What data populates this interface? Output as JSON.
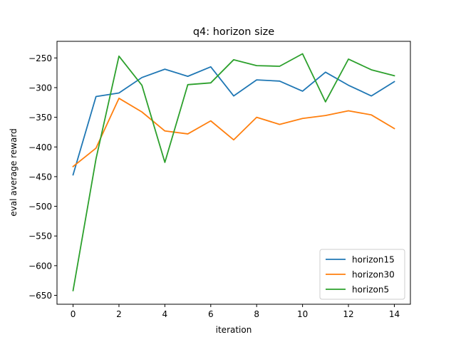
{
  "chart_data": {
    "type": "line",
    "title": "q4: horizon size",
    "xlabel": "iteration",
    "ylabel": "eval average reward",
    "xlim": [
      -0.7,
      14.7
    ],
    "ylim": [
      -665,
      -222
    ],
    "xticks": [
      0,
      2,
      4,
      6,
      8,
      10,
      12,
      14
    ],
    "yticks": [
      -650,
      -600,
      -550,
      -500,
      -450,
      -400,
      -350,
      -300,
      -250
    ],
    "grid": false,
    "legend_position": "lower-right",
    "x": [
      0,
      1,
      2,
      3,
      4,
      5,
      6,
      7,
      8,
      9,
      10,
      11,
      12,
      13,
      14
    ],
    "series": [
      {
        "name": "horizon15",
        "color": "#1f77b4",
        "values": [
          -447,
          -315,
          -309,
          -283,
          -269,
          -281,
          -265,
          -314,
          -287,
          -289,
          -306,
          -274,
          -296,
          -314,
          -290
        ]
      },
      {
        "name": "horizon30",
        "color": "#ff7f0e",
        "values": [
          -433,
          -402,
          -318,
          -341,
          -373,
          -378,
          -356,
          -388,
          -350,
          -362,
          -352,
          -347,
          -339,
          -346,
          -369
        ]
      },
      {
        "name": "horizon5",
        "color": "#2ca02c",
        "values": [
          -642,
          -420,
          -247,
          -296,
          -426,
          -295,
          -292,
          -253,
          -263,
          -264,
          -243,
          -324,
          -252,
          -270,
          -280
        ]
      }
    ]
  }
}
